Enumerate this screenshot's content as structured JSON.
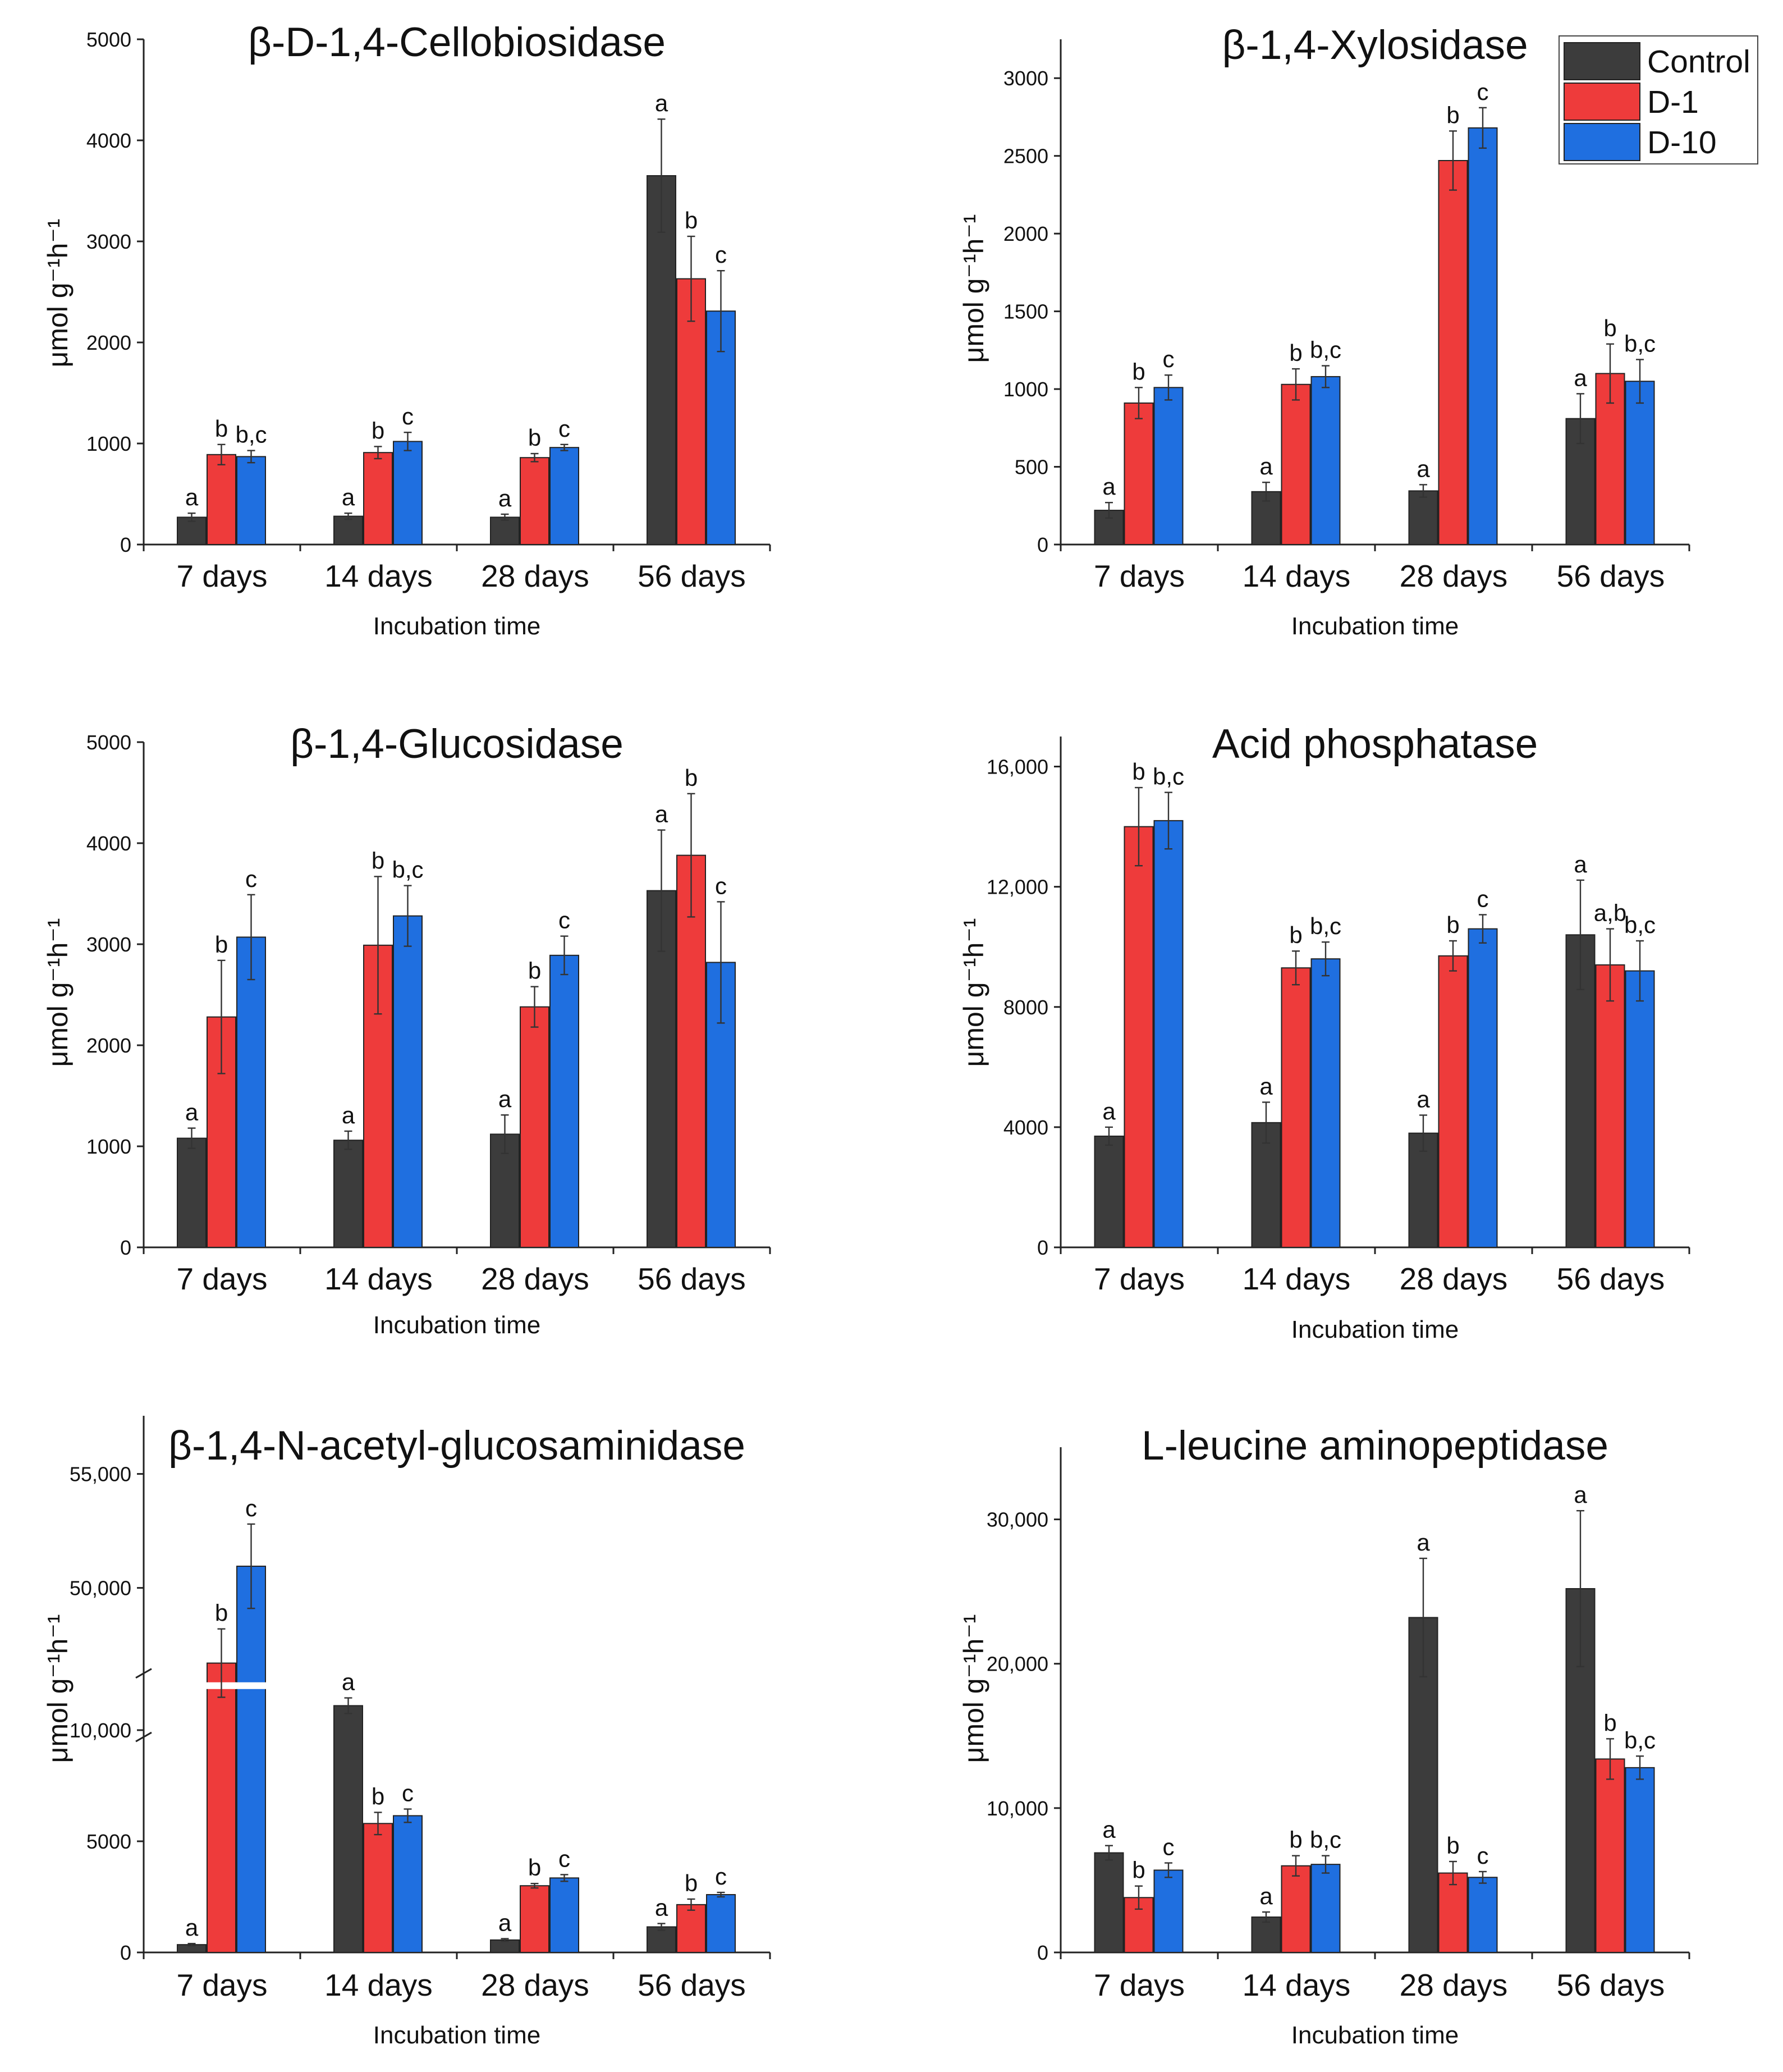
{
  "chart_data": [
    {
      "type": "bar",
      "title": "β-D-1,4-Cellobiosidase",
      "xlabel": "Incubation time",
      "ylabel": "μmol g⁻¹h⁻¹",
      "categories": [
        "7 days",
        "14 days",
        "28 days",
        "56 days"
      ],
      "ylim": [
        0,
        5000
      ],
      "yticks": [
        0,
        1000,
        2000,
        3000,
        4000,
        5000
      ],
      "ytick_labels": [
        "0",
        "1000",
        "2000",
        "3000",
        "4000",
        "5000"
      ],
      "series": [
        {
          "name": "Control",
          "values": [
            270,
            280,
            270,
            3650
          ],
          "errors": [
            40,
            30,
            30,
            560
          ]
        },
        {
          "name": "D-1",
          "values": [
            890,
            910,
            860,
            2630
          ],
          "errors": [
            100,
            60,
            40,
            420
          ]
        },
        {
          "name": "D-10",
          "values": [
            870,
            1020,
            960,
            2310
          ],
          "errors": [
            60,
            90,
            30,
            400
          ]
        }
      ],
      "significance": [
        [
          "a",
          "b",
          "b,c"
        ],
        [
          "a",
          "b",
          "c"
        ],
        [
          "a",
          "b",
          "c"
        ],
        [
          "a",
          "b",
          "c"
        ]
      ]
    },
    {
      "type": "bar",
      "title": "β-1,4-Xylosidase",
      "xlabel": "Incubation time",
      "ylabel": "μmol g⁻¹h⁻¹",
      "categories": [
        "7 days",
        "14 days",
        "28 days",
        "56 days"
      ],
      "ylim": [
        0,
        3250
      ],
      "yticks": [
        0,
        500,
        1000,
        1500,
        2000,
        2500,
        3000
      ],
      "ytick_labels": [
        "0",
        "500",
        "1000",
        "1500",
        "2000",
        "2500",
        "3000"
      ],
      "series": [
        {
          "name": "Control",
          "values": [
            220,
            340,
            345,
            810
          ],
          "errors": [
            50,
            60,
            40,
            160
          ]
        },
        {
          "name": "D-1",
          "values": [
            910,
            1030,
            2470,
            1100
          ],
          "errors": [
            100,
            100,
            190,
            190
          ]
        },
        {
          "name": "D-10",
          "values": [
            1010,
            1080,
            2680,
            1050
          ],
          "errors": [
            80,
            70,
            130,
            140
          ]
        }
      ],
      "significance": [
        [
          "a",
          "b",
          "c"
        ],
        [
          "a",
          "b",
          "b,c"
        ],
        [
          "a",
          "b",
          "c"
        ],
        [
          "a",
          "b",
          "b,c"
        ]
      ]
    },
    {
      "type": "bar",
      "title": "β-1,4-Glucosidase",
      "xlabel": "Incubation time",
      "ylabel": "μmol g⁻¹h⁻¹",
      "categories": [
        "7 days",
        "14 days",
        "28 days",
        "56 days"
      ],
      "ylim": [
        0,
        5000
      ],
      "yticks": [
        0,
        1000,
        2000,
        3000,
        4000,
        5000
      ],
      "ytick_labels": [
        "0",
        "1000",
        "2000",
        "3000",
        "4000",
        "5000"
      ],
      "series": [
        {
          "name": "Control",
          "values": [
            1080,
            1060,
            1120,
            3530
          ],
          "errors": [
            100,
            90,
            190,
            600
          ]
        },
        {
          "name": "D-1",
          "values": [
            2280,
            2990,
            2380,
            3880
          ],
          "errors": [
            560,
            680,
            200,
            610
          ]
        },
        {
          "name": "D-10",
          "values": [
            3070,
            3280,
            2890,
            2820
          ],
          "errors": [
            420,
            300,
            190,
            600
          ]
        }
      ],
      "significance": [
        [
          "a",
          "b",
          "c"
        ],
        [
          "a",
          "b",
          "b,c"
        ],
        [
          "a",
          "b",
          "c"
        ],
        [
          "a",
          "b",
          "c"
        ]
      ]
    },
    {
      "type": "bar",
      "title": "Acid phosphatase",
      "xlabel": "Incubation time",
      "ylabel": "μmol g⁻¹h⁻¹",
      "categories": [
        "7 days",
        "14 days",
        "28 days",
        "56 days"
      ],
      "ylim": [
        0,
        17000
      ],
      "yticks": [
        0,
        4000,
        8000,
        12000,
        16000
      ],
      "ytick_labels": [
        "0",
        "4000",
        "8000",
        "12,000",
        "16,000"
      ],
      "series": [
        {
          "name": "Control",
          "values": [
            3700,
            4150,
            3800,
            10400
          ],
          "errors": [
            300,
            680,
            600,
            1820
          ]
        },
        {
          "name": "D-1",
          "values": [
            14000,
            9300,
            9700,
            9400
          ],
          "errors": [
            1300,
            560,
            500,
            1200
          ]
        },
        {
          "name": "D-10",
          "values": [
            14200,
            9600,
            10600,
            9200
          ],
          "errors": [
            940,
            560,
            470,
            1000
          ]
        }
      ],
      "significance": [
        [
          "a",
          "b",
          "b,c"
        ],
        [
          "a",
          "b",
          "b,c"
        ],
        [
          "a",
          "b",
          "c"
        ],
        [
          "a",
          "a,b",
          "b,c"
        ]
      ]
    },
    {
      "type": "bar",
      "title": "β-1,4-N-acetyl-glucosaminidase",
      "xlabel": "Incubation time",
      "ylabel": "μmol g⁻¹h⁻¹",
      "categories": [
        "7 days",
        "14 days",
        "28 days",
        "56 days"
      ],
      "axis_break": true,
      "ylim": [
        0,
        56000
      ],
      "yticks": [
        0,
        5000,
        10000,
        50000,
        55000
      ],
      "ytick_labels": [
        "0",
        "5000",
        "10,000",
        "50,000",
        "55,000"
      ],
      "series": [
        {
          "name": "Control",
          "values": [
            350,
            11100,
            560,
            1150
          ],
          "errors": [
            50,
            350,
            60,
            150
          ]
        },
        {
          "name": "D-1",
          "values": [
            46700,
            5800,
            3000,
            2150
          ],
          "errors": [
            1500,
            500,
            100,
            250
          ]
        },
        {
          "name": "D-10",
          "values": [
            50950,
            6150,
            3350,
            2600
          ],
          "errors": [
            1850,
            300,
            150,
            100
          ]
        }
      ],
      "significance": [
        [
          "a",
          "b",
          "c"
        ],
        [
          "a",
          "b",
          "c"
        ],
        [
          "a",
          "b",
          "c"
        ],
        [
          "a",
          "b",
          "c"
        ]
      ]
    },
    {
      "type": "bar",
      "title": "L-leucine aminopeptidase",
      "xlabel": "Incubation time",
      "ylabel": "μmol g⁻¹h⁻¹",
      "categories": [
        "7 days",
        "14 days",
        "28 days",
        "56 days"
      ],
      "ylim": [
        0,
        35000
      ],
      "yticks": [
        0,
        10000,
        20000,
        30000
      ],
      "ytick_labels": [
        "0",
        "10,000",
        "20,000",
        "30,000"
      ],
      "series": [
        {
          "name": "Control",
          "values": [
            6900,
            2450,
            23200,
            25200
          ],
          "errors": [
            500,
            350,
            4100,
            5400
          ]
        },
        {
          "name": "D-1",
          "values": [
            3800,
            6000,
            5500,
            13400
          ],
          "errors": [
            800,
            700,
            800,
            1400
          ]
        },
        {
          "name": "D-10",
          "values": [
            5700,
            6100,
            5200,
            12800
          ],
          "errors": [
            500,
            600,
            400,
            800
          ]
        }
      ],
      "significance": [
        [
          "a",
          "b",
          "c"
        ],
        [
          "a",
          "b",
          "b,c"
        ],
        [
          "a",
          "b",
          "c"
        ],
        [
          "a",
          "b",
          "b,c"
        ]
      ]
    }
  ],
  "legend": {
    "placement": "top-right",
    "items": [
      {
        "label": "Control",
        "color": "#3c3c3c"
      },
      {
        "label": "D-1",
        "color": "#ee3b3b"
      },
      {
        "label": "D-10",
        "color": "#1f6fe0"
      }
    ]
  }
}
